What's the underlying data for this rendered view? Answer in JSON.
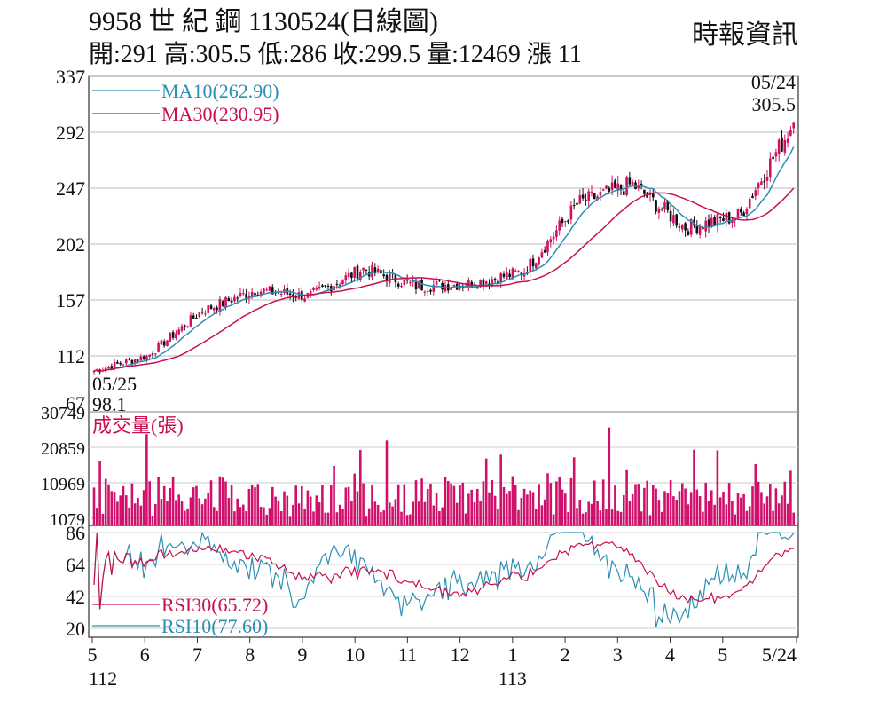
{
  "header": {
    "title": "9958 世 紀 鋼 1130524(日線圖)",
    "ohlc": "開:291 高:305.5 低:286 收:299.5 量:12469 漲 11",
    "source": "時報資訊"
  },
  "colors": {
    "up": "#d01060",
    "down": "#111111",
    "ma10": "#2a8fb3",
    "ma30": "#c8104e",
    "volume": "#d0106a",
    "rsi30": "#c8104e",
    "rsi10": "#2a8fb3"
  },
  "chart_data": [
    {
      "type": "candlestick",
      "panel": "price",
      "y_ticks": [
        67,
        112,
        157,
        202,
        247,
        292,
        337
      ],
      "ylim": [
        67,
        337
      ],
      "grid": true,
      "legend": [
        "MA10(262.90)",
        "MA30(230.95)"
      ],
      "annotations": {
        "start_date": "05/25",
        "start_low": "98.1",
        "end_date": "05/24",
        "end_high": "305.5"
      },
      "monthly_close_approx": {
        "x": [
          "112/5",
          "112/6",
          "112/7",
          "112/8",
          "112/9",
          "112/10",
          "112/11",
          "112/12",
          "113/1",
          "113/2",
          "113/3",
          "113/4",
          "113/5",
          "113/5/24"
        ],
        "values": [
          100,
          112,
          148,
          165,
          160,
          182,
          168,
          170,
          180,
          235,
          250,
          215,
          225,
          299.5
        ]
      }
    },
    {
      "type": "bar",
      "panel": "volume",
      "title": "成交量(張)",
      "y_ticks": [
        1079,
        10969,
        20859,
        30749
      ],
      "ylim": [
        1079,
        30749
      ]
    },
    {
      "type": "line",
      "panel": "rsi",
      "y_ticks": [
        20,
        42,
        64,
        86
      ],
      "ylim": [
        20,
        86
      ],
      "legend": [
        "RSI30(65.72)",
        "RSI10(77.60)"
      ]
    }
  ],
  "x_axis": {
    "months": [
      "5",
      "6",
      "7",
      "8",
      "9",
      "10",
      "11",
      "12",
      "1",
      "2",
      "3",
      "4",
      "5",
      "5/24"
    ],
    "years": [
      "112",
      "113"
    ]
  }
}
